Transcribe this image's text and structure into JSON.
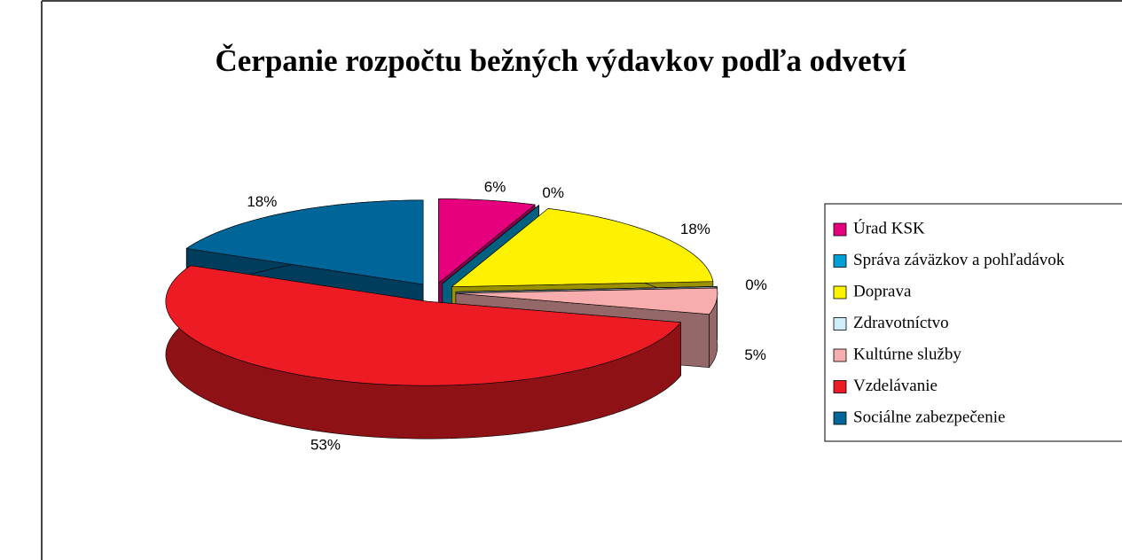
{
  "chart_data": {
    "type": "pie3d",
    "title": "Čerpanie rozpočtu bežných výdavkov podľa odvetví",
    "categories": [
      "Úrad KSK",
      "Správa záväzkov a pohľadávok",
      "Doprava",
      "Zdravotníctvo",
      "Kultúrne služby",
      "Vzdelávanie",
      "Sociálne zabezpečenie"
    ],
    "values": [
      6,
      0,
      18,
      0,
      5,
      53,
      18
    ],
    "value_labels": [
      "6%",
      "0%",
      "18%",
      "0%",
      "5%",
      "53%",
      "18%"
    ],
    "colors": [
      "#e6007e",
      "#00a0d6",
      "#fff200",
      "#cdeefa",
      "#f7adad",
      "#ed1c24",
      "#006699"
    ],
    "legend": "right"
  }
}
